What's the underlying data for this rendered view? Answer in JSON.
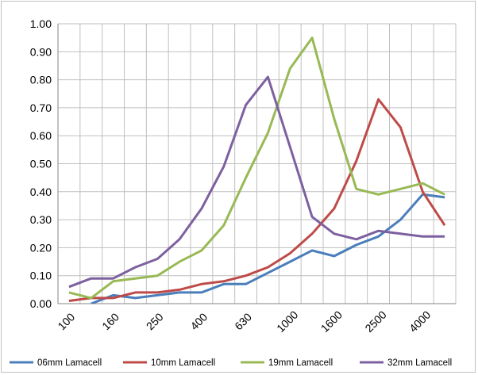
{
  "chart_data": {
    "type": "line",
    "x": [
      "100",
      "125",
      "160",
      "200",
      "250",
      "315",
      "400",
      "500",
      "630",
      "800",
      "1000",
      "1250",
      "1600",
      "2000",
      "2500",
      "3150",
      "4000",
      "5000"
    ],
    "x_tick_labels": [
      "100",
      "160",
      "250",
      "400",
      "630",
      "1000",
      "1600",
      "2500",
      "4000"
    ],
    "ylim": [
      0,
      1.0
    ],
    "y_ticks": [
      "0.00",
      "0.10",
      "0.20",
      "0.30",
      "0.40",
      "0.50",
      "0.60",
      "0.70",
      "0.80",
      "0.90",
      "1.00"
    ],
    "grid": true,
    "legend_position": "bottom",
    "series": [
      {
        "name": "06mm Lamacell",
        "color": "#4a7ebb",
        "values": [
          null,
          0.0,
          0.03,
          0.02,
          0.03,
          0.04,
          0.04,
          0.07,
          0.07,
          0.11,
          0.15,
          0.19,
          0.17,
          0.21,
          0.24,
          0.3,
          0.39,
          0.38
        ]
      },
      {
        "name": "10mm Lamacell",
        "color": "#be4b48",
        "values": [
          0.01,
          0.02,
          0.02,
          0.04,
          0.04,
          0.05,
          0.07,
          0.08,
          0.1,
          0.13,
          0.18,
          0.25,
          0.34,
          0.51,
          0.73,
          0.63,
          0.4,
          0.28
        ]
      },
      {
        "name": "19mm Lamacell",
        "color": "#98b954",
        "values": [
          0.04,
          0.02,
          0.08,
          0.09,
          0.1,
          0.15,
          0.19,
          0.28,
          0.45,
          0.61,
          0.84,
          0.95,
          0.66,
          0.41,
          0.39,
          0.41,
          0.43,
          0.39
        ]
      },
      {
        "name": "32mm Lamacell",
        "color": "#7d60a0",
        "values": [
          0.06,
          0.09,
          0.09,
          0.13,
          0.16,
          0.23,
          0.34,
          0.49,
          0.71,
          0.81,
          0.56,
          0.31,
          0.25,
          0.23,
          0.26,
          0.25,
          0.24,
          0.24
        ]
      }
    ]
  }
}
